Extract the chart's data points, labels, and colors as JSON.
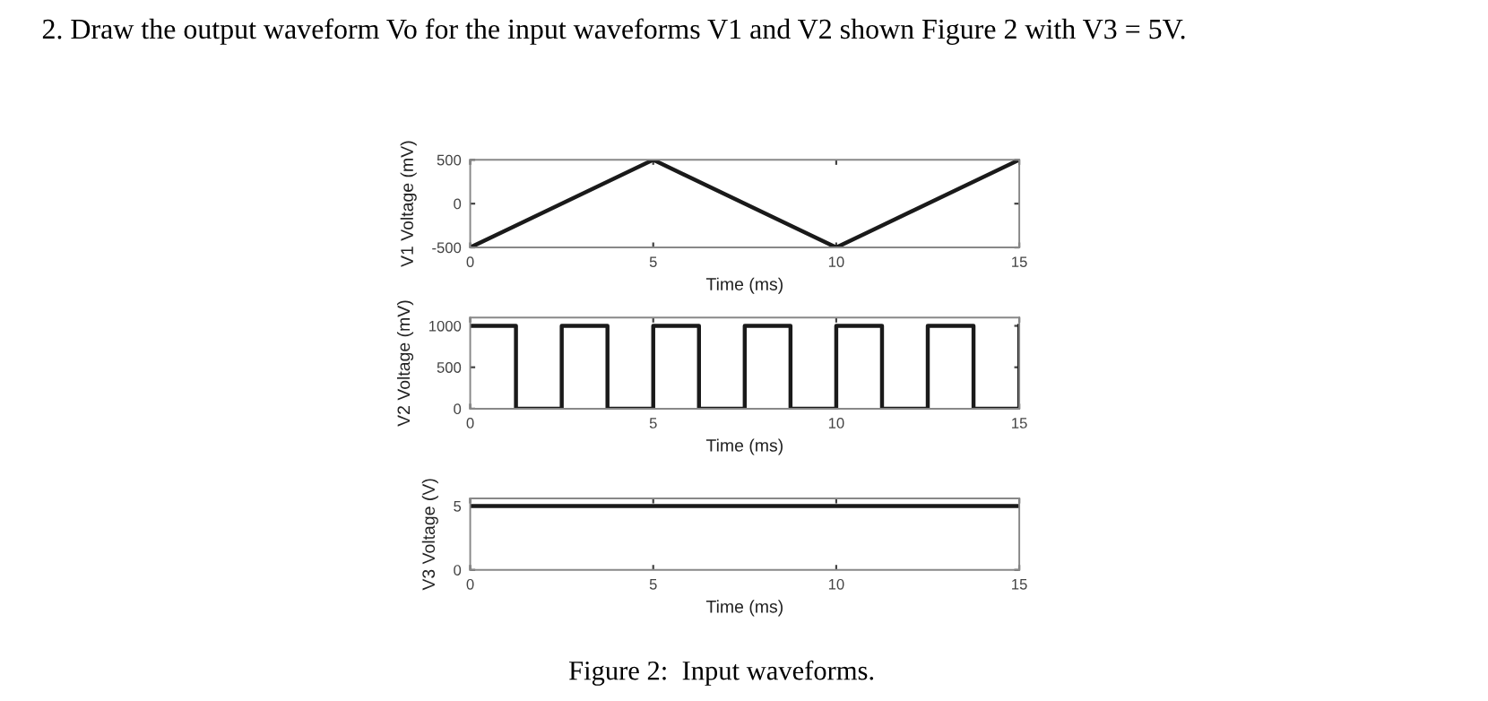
{
  "chart_data": [
    {
      "type": "line",
      "title": "2. Draw the output waveform Vo for the input waveforms V1 and V2 shown Figure 2 with V3 = 5V.",
      "xlabel": "Time (ms)",
      "ylabel": "V1 Voltage (mV)",
      "x": [
        0,
        5,
        10,
        15
      ],
      "series": [
        {
          "color": "#1a1a1a",
          "values": [
            -500,
            500,
            -500,
            500
          ]
        }
      ],
      "xlim": [
        0,
        15
      ],
      "ylim": [
        -500,
        500
      ],
      "xticks": [
        0,
        5,
        10,
        15
      ],
      "yticks": [
        -500,
        0,
        500
      ],
      "grid": false,
      "marker": "none",
      "line_style": "solid"
    },
    {
      "type": "step",
      "xlabel": "Time (ms)",
      "ylabel": "V2 Voltage (mV)",
      "x": [
        0,
        1.25,
        2.5,
        3.75,
        5,
        6.25,
        7.5,
        8.75,
        10,
        11.25,
        12.5,
        13.75,
        15
      ],
      "series": [
        {
          "color": "#1a1a1a",
          "values": [
            1000,
            0,
            1000,
            0,
            1000,
            0,
            1000,
            0,
            1000,
            0,
            1000,
            0,
            1000
          ]
        }
      ],
      "xlim": [
        0,
        15
      ],
      "ylim": [
        0,
        1100
      ],
      "xticks": [
        0,
        5,
        10,
        15
      ],
      "yticks": [
        0,
        500,
        1000
      ],
      "grid": false,
      "marker": "none",
      "line_style": "solid"
    },
    {
      "type": "line",
      "xlabel": "Time (ms)",
      "ylabel": "V3 Voltage (V)",
      "x": [
        0,
        15
      ],
      "series": [
        {
          "color": "#1a1a1a",
          "values": [
            5,
            5
          ]
        }
      ],
      "xlim": [
        0,
        15
      ],
      "ylim": [
        0,
        5.6
      ],
      "xticks": [
        0,
        5,
        10,
        15
      ],
      "yticks": [
        0,
        5
      ],
      "grid": false,
      "marker": "none",
      "line_style": "solid",
      "annotations": [
        "Figure 2:  Input waveforms."
      ]
    }
  ]
}
